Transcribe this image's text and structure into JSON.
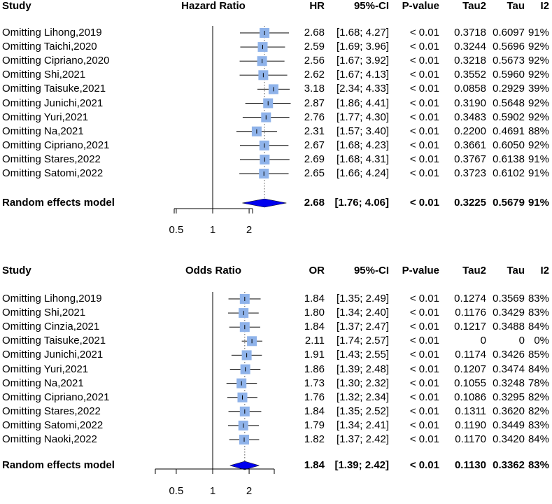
{
  "chart_data": [
    {
      "type": "forest",
      "scale": "log",
      "null_value": 1,
      "axis_ticks": [
        "0.5",
        "1",
        "2"
      ],
      "axis_tick_values": [
        0.5,
        1,
        2
      ],
      "headers": {
        "study": "Study",
        "measure": "Hazard Ratio",
        "estimate": "HR",
        "ci": "95%-CI",
        "p": "P-value",
        "tau2": "Tau2",
        "tau": "Tau",
        "i2": "I2"
      },
      "rows": [
        {
          "label": "Omitting Lihong,2019",
          "est": 2.68,
          "lo": 1.68,
          "hi": 4.27,
          "est_text": "2.68",
          "ci_text": "[1.68; 4.27]",
          "p": "< 0.01",
          "tau2": "0.3718",
          "tau": "0.6097",
          "i2": "91%"
        },
        {
          "label": "Omitting Taichi,2020",
          "est": 2.59,
          "lo": 1.69,
          "hi": 3.96,
          "est_text": "2.59",
          "ci_text": "[1.69; 3.96]",
          "p": "< 0.01",
          "tau2": "0.3244",
          "tau": "0.5696",
          "i2": "92%"
        },
        {
          "label": "Omitting Cipriano,2020",
          "est": 2.56,
          "lo": 1.67,
          "hi": 3.92,
          "est_text": "2.56",
          "ci_text": "[1.67; 3.92]",
          "p": "< 0.01",
          "tau2": "0.3218",
          "tau": "0.5673",
          "i2": "92%"
        },
        {
          "label": "Omitting Shi,2021",
          "est": 2.62,
          "lo": 1.67,
          "hi": 4.13,
          "est_text": "2.62",
          "ci_text": "[1.67; 4.13]",
          "p": "< 0.01",
          "tau2": "0.3552",
          "tau": "0.5960",
          "i2": "92%"
        },
        {
          "label": "Omitting Taisuke,2021",
          "est": 3.18,
          "lo": 2.34,
          "hi": 4.33,
          "est_text": "3.18",
          "ci_text": "[2.34; 4.33]",
          "p": "< 0.01",
          "tau2": "0.0858",
          "tau": "0.2929",
          "i2": "39%"
        },
        {
          "label": "Omitting Junichi,2021",
          "est": 2.87,
          "lo": 1.86,
          "hi": 4.41,
          "est_text": "2.87",
          "ci_text": "[1.86; 4.41]",
          "p": "< 0.01",
          "tau2": "0.3190",
          "tau": "0.5648",
          "i2": "92%"
        },
        {
          "label": "Omitting Yuri,2021",
          "est": 2.76,
          "lo": 1.77,
          "hi": 4.3,
          "est_text": "2.76",
          "ci_text": "[1.77; 4.30]",
          "p": "< 0.01",
          "tau2": "0.3483",
          "tau": "0.5902",
          "i2": "92%"
        },
        {
          "label": "Omitting Na,2021",
          "est": 2.31,
          "lo": 1.57,
          "hi": 3.4,
          "est_text": "2.31",
          "ci_text": "[1.57; 3.40]",
          "p": "< 0.01",
          "tau2": "0.2200",
          "tau": "0.4691",
          "i2": "88%"
        },
        {
          "label": "Omitting Cipriano,2021",
          "est": 2.67,
          "lo": 1.68,
          "hi": 4.23,
          "est_text": "2.67",
          "ci_text": "[1.68; 4.23]",
          "p": "< 0.01",
          "tau2": "0.3661",
          "tau": "0.6050",
          "i2": "92%"
        },
        {
          "label": "Omitting Stares,2022",
          "est": 2.69,
          "lo": 1.68,
          "hi": 4.31,
          "est_text": "2.69",
          "ci_text": "[1.68; 4.31]",
          "p": "< 0.01",
          "tau2": "0.3767",
          "tau": "0.6138",
          "i2": "91%"
        },
        {
          "label": "Omitting Satomi,2022",
          "est": 2.65,
          "lo": 1.66,
          "hi": 4.24,
          "est_text": "2.65",
          "ci_text": "[1.66; 4.24]",
          "p": "< 0.01",
          "tau2": "0.3723",
          "tau": "0.6102",
          "i2": "91%"
        }
      ],
      "summary": {
        "label": "Random effects model",
        "est": 2.68,
        "lo": 1.76,
        "hi": 4.06,
        "est_text": "2.68",
        "ci_text": "[1.76; 4.06]",
        "p": "< 0.01",
        "tau2": "0.3225",
        "tau": "0.5679",
        "i2": "91%"
      },
      "colors": {
        "square": "#8fb3ea",
        "diamond": "#0000ee",
        "line": "#000000",
        "ref": "#555555"
      }
    },
    {
      "type": "forest",
      "scale": "log",
      "null_value": 1,
      "axis_ticks": [
        "0.5",
        "1",
        "2"
      ],
      "axis_tick_values": [
        0.5,
        1,
        2
      ],
      "headers": {
        "study": "Study",
        "measure": "Odds Ratio",
        "estimate": "OR",
        "ci": "95%-CI",
        "p": "P-value",
        "tau2": "Tau2",
        "tau": "Tau",
        "i2": "I2"
      },
      "rows": [
        {
          "label": "Omitting Lihong,2019",
          "est": 1.84,
          "lo": 1.35,
          "hi": 2.49,
          "est_text": "1.84",
          "ci_text": "[1.35; 2.49]",
          "p": "< 0.01",
          "tau2": "0.1274",
          "tau": "0.3569",
          "i2": "83%"
        },
        {
          "label": "Omitting Shi,2021",
          "est": 1.8,
          "lo": 1.34,
          "hi": 2.4,
          "est_text": "1.80",
          "ci_text": "[1.34; 2.40]",
          "p": "< 0.01",
          "tau2": "0.1176",
          "tau": "0.3429",
          "i2": "83%"
        },
        {
          "label": "Omitting Cinzia,2021",
          "est": 1.84,
          "lo": 1.37,
          "hi": 2.47,
          "est_text": "1.84",
          "ci_text": "[1.37; 2.47]",
          "p": "< 0.01",
          "tau2": "0.1217",
          "tau": "0.3488",
          "i2": "84%"
        },
        {
          "label": "Omitting Taisuke,2021",
          "est": 2.11,
          "lo": 1.74,
          "hi": 2.57,
          "est_text": "2.11",
          "ci_text": "[1.74; 2.57]",
          "p": "< 0.01",
          "tau2": "0",
          "tau": "0",
          "i2": "0%"
        },
        {
          "label": "Omitting Junichi,2021",
          "est": 1.91,
          "lo": 1.43,
          "hi": 2.55,
          "est_text": "1.91",
          "ci_text": "[1.43; 2.55]",
          "p": "< 0.01",
          "tau2": "0.1174",
          "tau": "0.3426",
          "i2": "85%"
        },
        {
          "label": "Omitting Yuri,2021",
          "est": 1.86,
          "lo": 1.39,
          "hi": 2.48,
          "est_text": "1.86",
          "ci_text": "[1.39; 2.48]",
          "p": "< 0.01",
          "tau2": "0.1207",
          "tau": "0.3474",
          "i2": "84%"
        },
        {
          "label": "Omitting Na,2021",
          "est": 1.73,
          "lo": 1.3,
          "hi": 2.32,
          "est_text": "1.73",
          "ci_text": "[1.30; 2.32]",
          "p": "< 0.01",
          "tau2": "0.1055",
          "tau": "0.3248",
          "i2": "78%"
        },
        {
          "label": "Omitting Cipriano,2021",
          "est": 1.76,
          "lo": 1.32,
          "hi": 2.34,
          "est_text": "1.76",
          "ci_text": "[1.32; 2.34]",
          "p": "< 0.01",
          "tau2": "0.1086",
          "tau": "0.3295",
          "i2": "82%"
        },
        {
          "label": "Omitting Stares,2022",
          "est": 1.84,
          "lo": 1.35,
          "hi": 2.52,
          "est_text": "1.84",
          "ci_text": "[1.35; 2.52]",
          "p": "< 0.01",
          "tau2": "0.1311",
          "tau": "0.3620",
          "i2": "82%"
        },
        {
          "label": "Omitting Satomi,2022",
          "est": 1.79,
          "lo": 1.34,
          "hi": 2.41,
          "est_text": "1.79",
          "ci_text": "[1.34; 2.41]",
          "p": "< 0.01",
          "tau2": "0.1190",
          "tau": "0.3449",
          "i2": "83%"
        },
        {
          "label": "Omitting Naoki,2022",
          "est": 1.82,
          "lo": 1.37,
          "hi": 2.42,
          "est_text": "1.82",
          "ci_text": "[1.37; 2.42]",
          "p": "< 0.01",
          "tau2": "0.1170",
          "tau": "0.3420",
          "i2": "84%"
        }
      ],
      "summary": {
        "label": "Random effects model",
        "est": 1.84,
        "lo": 1.39,
        "hi": 2.42,
        "est_text": "1.84",
        "ci_text": "[1.39; 2.42]",
        "p": "< 0.01",
        "tau2": "0.1130",
        "tau": "0.3362",
        "i2": "83%"
      },
      "colors": {
        "square": "#8fb3ea",
        "diamond": "#0000ee",
        "line": "#000000",
        "ref": "#555555"
      }
    }
  ]
}
